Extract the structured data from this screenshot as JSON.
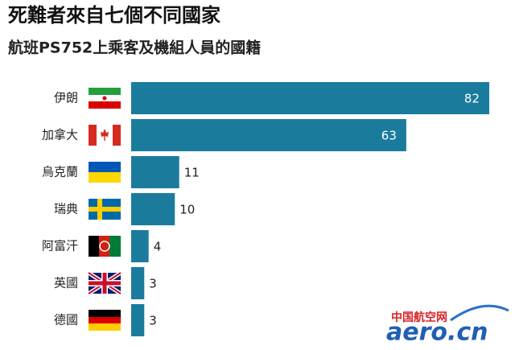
{
  "chart_data": {
    "type": "bar",
    "orientation": "horizontal",
    "title": "死難者來自七個不同國家",
    "subtitle": "航班PS752上乘客及機組人員的國籍",
    "categories": [
      "伊朗",
      "加拿大",
      "烏克蘭",
      "瑞典",
      "阿富汗",
      "英國",
      "德國"
    ],
    "values": [
      82,
      63,
      11,
      10,
      4,
      3,
      3
    ],
    "color": "#1b7b9c"
  },
  "watermark": {
    "name": "中国航空网",
    "site": "aero.cn"
  }
}
